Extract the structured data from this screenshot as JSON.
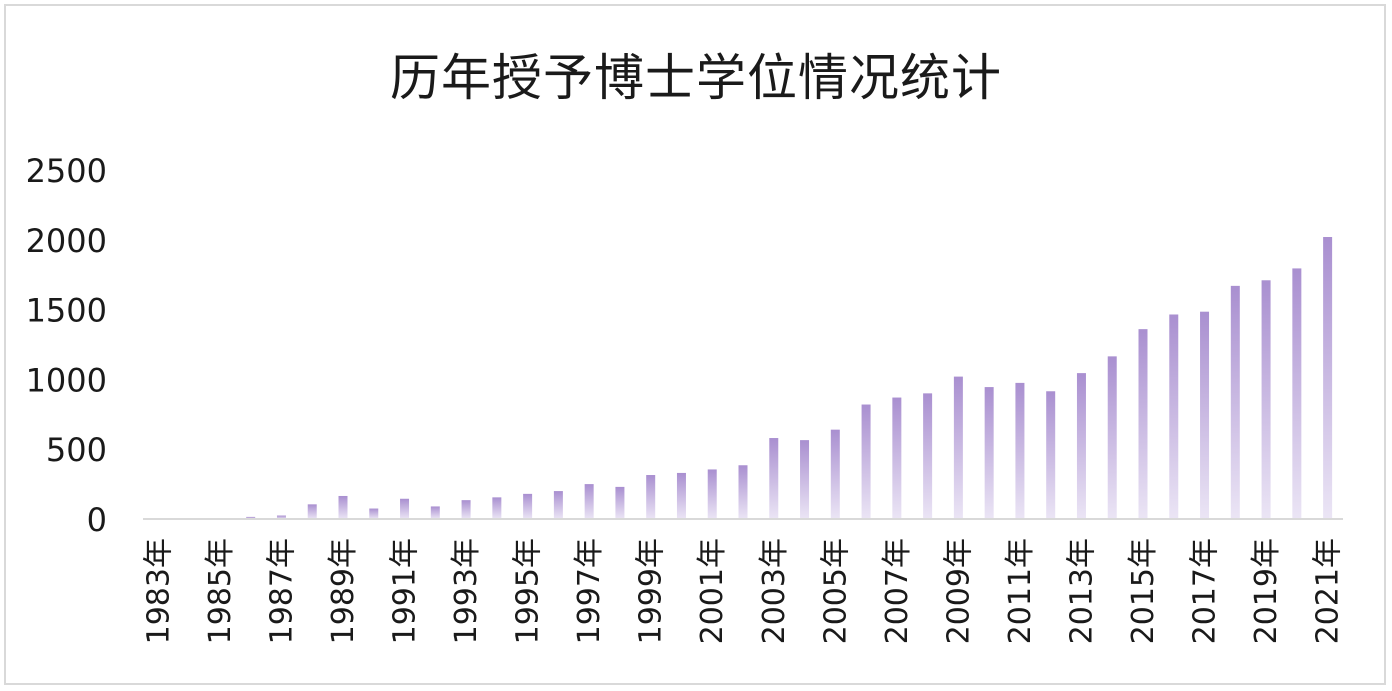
{
  "chart_data": {
    "type": "bar",
    "title": "历年授予博士学位情况统计",
    "xlabel": "",
    "ylabel": "",
    "ylim": [
      0,
      2500
    ],
    "yticks": [
      0,
      500,
      1000,
      1500,
      2000,
      2500
    ],
    "grid": false,
    "legend": "none",
    "bar_color_top": "#a98fd0",
    "bar_color_bottom": "#ebe5f5",
    "categories": [
      "1983年",
      "1984年",
      "1985年",
      "1986年",
      "1987年",
      "1988年",
      "1989年",
      "1990年",
      "1991年",
      "1992年",
      "1993年",
      "1994年",
      "1995年",
      "1996年",
      "1997年",
      "1998年",
      "1999年",
      "2000年",
      "2001年",
      "2002年",
      "2003年",
      "2004年",
      "2005年",
      "2006年",
      "2007年",
      "2008年",
      "2009年",
      "2010年",
      "2011年",
      "2012年",
      "2013年",
      "2014年",
      "2015年",
      "2016年",
      "2017年",
      "2018年",
      "2019年",
      "2020年",
      "2021年"
    ],
    "tick_labels": [
      "1983年",
      "1985年",
      "1987年",
      "1989年",
      "1991年",
      "1993年",
      "1995年",
      "1997年",
      "1999年",
      "2001年",
      "2003年",
      "2005年",
      "2007年",
      "2009年",
      "2011年",
      "2013年",
      "2015年",
      "2017年",
      "2019年",
      "2021年"
    ],
    "values": [
      2,
      3,
      5,
      15,
      25,
      105,
      165,
      75,
      145,
      90,
      135,
      155,
      180,
      200,
      250,
      230,
      315,
      330,
      355,
      385,
      580,
      565,
      640,
      820,
      870,
      900,
      1020,
      945,
      975,
      915,
      1045,
      1165,
      1360,
      1465,
      1485,
      1670,
      1710,
      1795,
      2020
    ]
  }
}
